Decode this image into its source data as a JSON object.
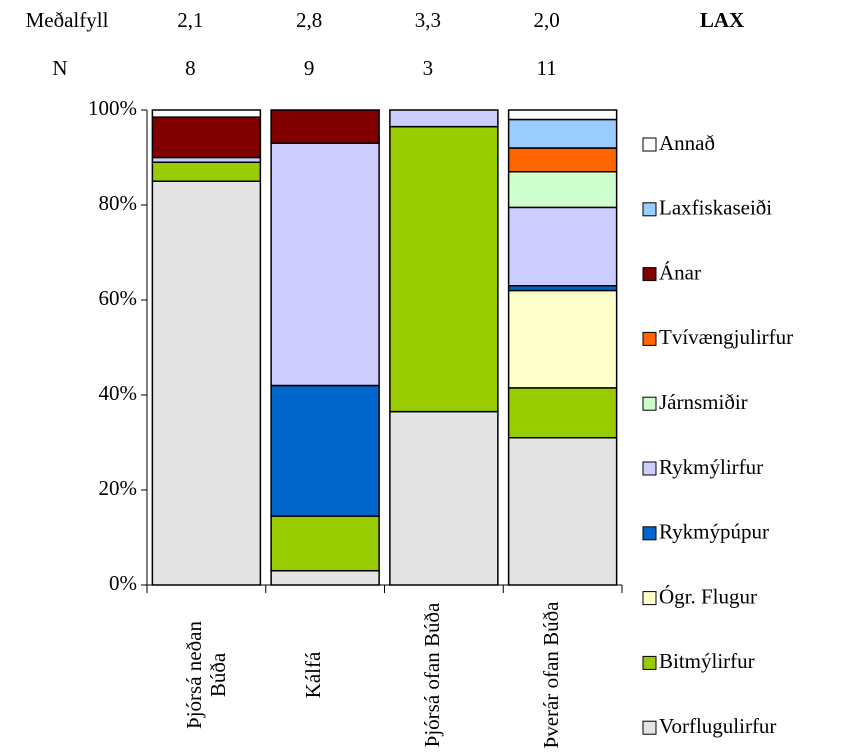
{
  "chart_data": {
    "type": "stacked_bar_100",
    "annotation": "LAX",
    "stats": [
      {
        "label": "Meðalfyll",
        "values": [
          "2,1",
          "2,8",
          "3,3",
          "2,0"
        ]
      },
      {
        "label": "N",
        "values": [
          8,
          9,
          3,
          11
        ]
      }
    ],
    "categories": [
      "Þjórsá neðan Búða",
      "Kálfá",
      "Þjórsá ofan Búða",
      "Þverár ofan Búða"
    ],
    "series": [
      {
        "name": "Vorflugulirfur",
        "color": "#e4e4e4",
        "values": [
          85,
          3,
          36.5,
          31
        ]
      },
      {
        "name": "Bitmýlirfur",
        "color": "#99cc00",
        "values": [
          4,
          11.5,
          60,
          10.5
        ]
      },
      {
        "name": "Ógr. Flugur",
        "color": "#ffffcc",
        "values": [
          0,
          0,
          0,
          20.5
        ]
      },
      {
        "name": "Rykmýpúpur",
        "color": "#0066cc",
        "values": [
          0,
          27.5,
          0,
          1
        ]
      },
      {
        "name": "Rykmýlirfur",
        "color": "#ccccff",
        "values": [
          1,
          51,
          3.5,
          16.5
        ]
      },
      {
        "name": "Járnsmiðir",
        "color": "#ccffcc",
        "values": [
          0,
          0,
          0,
          7.5
        ]
      },
      {
        "name": "Tvívængjulirfur",
        "color": "#ff6600",
        "values": [
          0,
          0,
          0,
          5
        ]
      },
      {
        "name": "Ánar",
        "color": "#800000",
        "values": [
          8.5,
          7,
          0,
          0
        ]
      },
      {
        "name": "Laxfiskaseiði",
        "color": "#99ccff",
        "values": [
          0,
          0,
          0,
          6
        ]
      },
      {
        "name": "Annað",
        "color": "#ffffff",
        "values": [
          1.5,
          0,
          0,
          2
        ]
      }
    ],
    "ylim": [
      0,
      100
    ],
    "yticks": [
      {
        "value": 0,
        "label": "0%"
      },
      {
        "value": 20,
        "label": "20%"
      },
      {
        "value": 40,
        "label": "40%"
      },
      {
        "value": 60,
        "label": "60%"
      },
      {
        "value": 80,
        "label": "80%"
      },
      {
        "value": 100,
        "label": "100%"
      }
    ]
  }
}
